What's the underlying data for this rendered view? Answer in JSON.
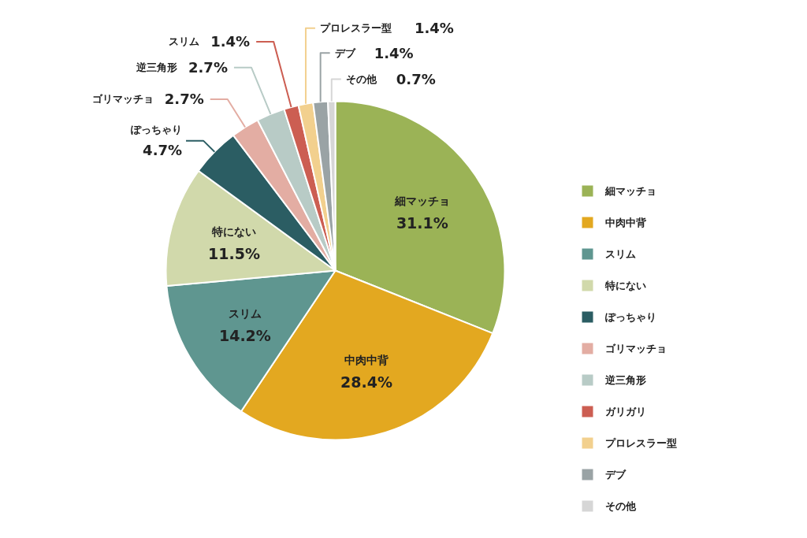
{
  "chart_data": {
    "type": "pie",
    "categories": [
      "細マッチョ",
      "中肉中背",
      "スリム",
      "特にない",
      "ぽっちゃり",
      "ゴリマッチョ",
      "逆三角形",
      "ガリガリ",
      "プロレスラー型",
      "デブ",
      "その他"
    ],
    "values": [
      31.1,
      28.4,
      14.2,
      11.5,
      4.7,
      2.7,
      2.7,
      1.4,
      1.4,
      1.4,
      0.7
    ],
    "colors": [
      "#9bb356",
      "#e3a820",
      "#5f9690",
      "#d1d9ab",
      "#2b5d63",
      "#e3ada3",
      "#b8cbc6",
      "#cc5e52",
      "#f2d08e",
      "#9aa3a5",
      "#d6d6d6"
    ],
    "value_labels": [
      "細マッチョ\n31.1%",
      "中肉中背\n28.4%",
      "スリム\n14.2%",
      "特にない\n11.5%",
      "ぽっちゃり\n4.7%",
      "ゴリマッチョ\n2.7%",
      "逆三角形\n2.7%",
      "スリム\n1.4%",
      "プロレスラー型\n1.4%",
      "デブ\n1.4%",
      "その他\n0.7%"
    ],
    "legend": "right"
  }
}
